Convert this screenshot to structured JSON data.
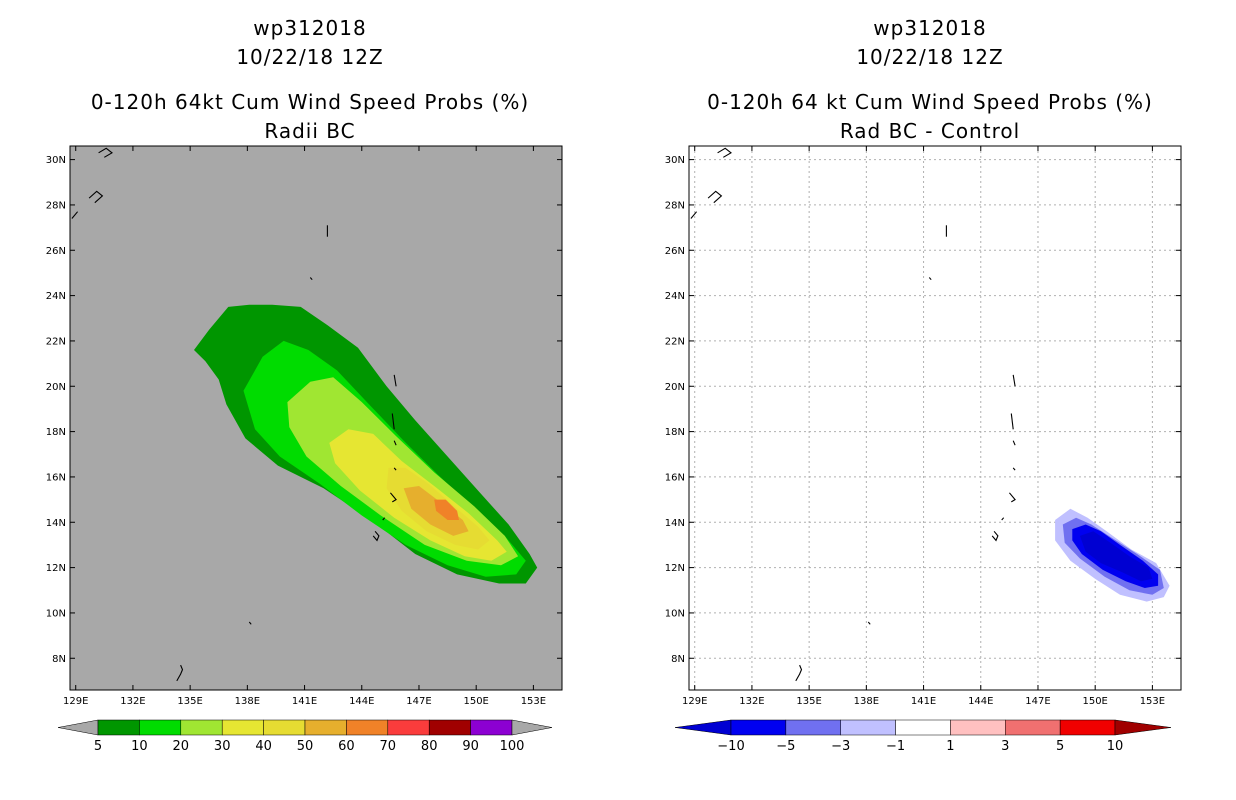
{
  "charts": [
    {
      "title_line1": "wp312018",
      "title_line2": "10/22/18 12Z",
      "title_line3": "0-120h 64kt Cum Wind Speed Probs (%)",
      "title_line4": "Radii BC"
    },
    {
      "title_line1": "wp312018",
      "title_line2": "10/22/18 12Z",
      "title_line3": "0-120h 64 kt Cum Wind Speed Probs (%)",
      "title_line4": "Rad BC - Control"
    }
  ],
  "chart_data": [
    {
      "type": "heatmap",
      "title": "0-120h 64kt Cum Wind Speed Probs (%)",
      "subtitle": "Radii BC",
      "x_ticks": [
        "129E",
        "132E",
        "135E",
        "138E",
        "141E",
        "144E",
        "147E",
        "150E",
        "153E"
      ],
      "y_ticks": [
        "8N",
        "10N",
        "12N",
        "14N",
        "16N",
        "18N",
        "20N",
        "22N",
        "24N",
        "26N",
        "28N",
        "30N"
      ],
      "xlim": [
        128.7,
        154.5
      ],
      "ylim": [
        6.6,
        30.6
      ],
      "grid": false,
      "background_color": "#a8a8a8",
      "colorbar": {
        "levels": [
          "5",
          "10",
          "20",
          "30",
          "40",
          "50",
          "60",
          "70",
          "80",
          "90",
          "100"
        ],
        "colors": [
          "#009600",
          "#00dc00",
          "#a0e632",
          "#e6e632",
          "#e6dc32",
          "#e6af2d",
          "#f08228",
          "#fa3c3c",
          "#a00000",
          "#8c00d2"
        ]
      },
      "contours": [
        {
          "level": 5,
          "color": "#009600",
          "points": [
            [
              135.2,
              21.6
            ],
            [
              136,
              22.5
            ],
            [
              137,
              23.5
            ],
            [
              138.1,
              23.6
            ],
            [
              139.3,
              23.6
            ],
            [
              140.8,
              23.5
            ],
            [
              142.2,
              22.7
            ],
            [
              143.8,
              21.7
            ],
            [
              145.3,
              20
            ],
            [
              146.8,
              18.5
            ],
            [
              148.5,
              16.9
            ],
            [
              150.2,
              15.3
            ],
            [
              151.7,
              13.9
            ],
            [
              152.8,
              12.6
            ],
            [
              153.2,
              12
            ],
            [
              152.6,
              11.3
            ],
            [
              151.2,
              11.3
            ],
            [
              149,
              11.7
            ],
            [
              146.8,
              12.6
            ],
            [
              144.5,
              14.1
            ],
            [
              142,
              15.5
            ],
            [
              139.6,
              16.5
            ],
            [
              137.9,
              17.7
            ],
            [
              136.9,
              19.2
            ],
            [
              136.5,
              20.3
            ],
            [
              135.8,
              21.1
            ]
          ]
        },
        {
          "level": 10,
          "color": "#00dc00",
          "points": [
            [
              137.8,
              19.8
            ],
            [
              138.8,
              21.3
            ],
            [
              139.9,
              22
            ],
            [
              141.2,
              21.6
            ],
            [
              142.7,
              20.7
            ],
            [
              144.5,
              19.1
            ],
            [
              146.2,
              17.6
            ],
            [
              148,
              16.1
            ],
            [
              149.9,
              14.6
            ],
            [
              151.5,
              13.4
            ],
            [
              152.6,
              12.3
            ],
            [
              152.1,
              11.7
            ],
            [
              150.5,
              11.6
            ],
            [
              148.5,
              12.1
            ],
            [
              146.3,
              13
            ],
            [
              144,
              14.3
            ],
            [
              141.8,
              15.7
            ],
            [
              139.7,
              16.9
            ],
            [
              138.4,
              18.1
            ]
          ]
        },
        {
          "level": 20,
          "color": "#a0e632",
          "points": [
            [
              140.1,
              19.3
            ],
            [
              141.3,
              20.2
            ],
            [
              142.5,
              20.4
            ],
            [
              144,
              19.3
            ],
            [
              145.8,
              17.8
            ],
            [
              147.8,
              16.2
            ],
            [
              149.9,
              14.7
            ],
            [
              151.5,
              13.4
            ],
            [
              152.2,
              12.5
            ],
            [
              151.3,
              12.1
            ],
            [
              149.5,
              12.3
            ],
            [
              147.3,
              13
            ],
            [
              145,
              14.3
            ],
            [
              142.9,
              15.6
            ],
            [
              141.1,
              16.9
            ],
            [
              140.2,
              18.2
            ]
          ]
        },
        {
          "level": 30,
          "color": "#e6e632",
          "points": [
            [
              142.3,
              17.5
            ],
            [
              143.3,
              18.1
            ],
            [
              144.6,
              17.9
            ],
            [
              146.1,
              16.7
            ],
            [
              147.8,
              15.6
            ],
            [
              149.6,
              14.4
            ],
            [
              151.1,
              13.2
            ],
            [
              151.6,
              12.7
            ],
            [
              150.8,
              12.3
            ],
            [
              149.4,
              12.5
            ],
            [
              147.6,
              13.2
            ],
            [
              145.7,
              14.2
            ],
            [
              143.9,
              15.4
            ],
            [
              142.6,
              16.6
            ]
          ]
        },
        {
          "level": 40,
          "color": "#e6dc32",
          "points": [
            [
              145.4,
              16.4
            ],
            [
              146.3,
              16.4
            ],
            [
              147.5,
              15.7
            ],
            [
              149,
              14.6
            ],
            [
              150.1,
              13.8
            ],
            [
              150.7,
              13.2
            ],
            [
              150.1,
              12.8
            ],
            [
              148.9,
              13
            ],
            [
              147.4,
              13.6
            ],
            [
              146.1,
              14.5
            ],
            [
              145.3,
              15.5
            ]
          ]
        },
        {
          "level": 50,
          "color": "#e6af2d",
          "points": [
            [
              146.2,
              15.5
            ],
            [
              147,
              15.6
            ],
            [
              148.1,
              14.9
            ],
            [
              149.3,
              14.1
            ],
            [
              149.6,
              13.6
            ],
            [
              148.8,
              13.4
            ],
            [
              147.6,
              13.9
            ],
            [
              146.6,
              14.6
            ]
          ]
        },
        {
          "level": 60,
          "color": "#f08228",
          "points": [
            [
              147.8,
              15
            ],
            [
              148.4,
              15
            ],
            [
              149,
              14.5
            ],
            [
              149.1,
              14.1
            ],
            [
              148.5,
              14.1
            ],
            [
              147.9,
              14.5
            ]
          ]
        }
      ]
    },
    {
      "type": "heatmap",
      "title": "0-120h 64 kt Cum Wind Speed Probs (%)",
      "subtitle": "Rad BC - Control",
      "x_ticks": [
        "129E",
        "132E",
        "135E",
        "138E",
        "141E",
        "144E",
        "147E",
        "150E",
        "153E"
      ],
      "y_ticks": [
        "8N",
        "10N",
        "12N",
        "14N",
        "16N",
        "18N",
        "20N",
        "22N",
        "24N",
        "26N",
        "28N",
        "30N"
      ],
      "xlim": [
        128.7,
        154.5
      ],
      "ylim": [
        6.6,
        30.6
      ],
      "grid": true,
      "background_color": "#ffffff",
      "colorbar": {
        "levels": [
          "-10",
          "-5",
          "-3",
          "-1",
          "1",
          "3",
          "5",
          "10"
        ],
        "colors": [
          "#0000d2",
          "#0000f0",
          "#7070f0",
          "#c0c0ff",
          "#ffffff",
          "#ffc0c0",
          "#f07070",
          "#f00000",
          "#a00000"
        ]
      },
      "contours": [
        {
          "level": -1,
          "color": "#c0c0ff",
          "points": [
            [
              147.9,
              14.1
            ],
            [
              148.7,
              14.6
            ],
            [
              149.6,
              14.2
            ],
            [
              150.6,
              13.6
            ],
            [
              151.9,
              12.8
            ],
            [
              153.2,
              12.2
            ],
            [
              153.9,
              11.2
            ],
            [
              153.6,
              10.7
            ],
            [
              152.7,
              10.5
            ],
            [
              151.3,
              10.8
            ],
            [
              150,
              11.5
            ],
            [
              148.7,
              12.3
            ],
            [
              147.9,
              13.2
            ]
          ]
        },
        {
          "level": -3,
          "color": "#7070f0",
          "points": [
            [
              148.3,
              13.9
            ],
            [
              149,
              14.2
            ],
            [
              149.8,
              13.9
            ],
            [
              150.9,
              13.3
            ],
            [
              152.2,
              12.6
            ],
            [
              153.4,
              11.9
            ],
            [
              153.6,
              11.1
            ],
            [
              153,
              10.8
            ],
            [
              151.8,
              11
            ],
            [
              150.5,
              11.6
            ],
            [
              149.2,
              12.4
            ],
            [
              148.4,
              13.1
            ]
          ]
        },
        {
          "level": -5,
          "color": "#0000f0",
          "points": [
            [
              148.8,
              13.7
            ],
            [
              149.5,
              13.9
            ],
            [
              150.3,
              13.6
            ],
            [
              151.3,
              13
            ],
            [
              152.5,
              12.3
            ],
            [
              153.3,
              11.7
            ],
            [
              153.3,
              11.2
            ],
            [
              152.6,
              11.1
            ],
            [
              151.6,
              11.4
            ],
            [
              150.4,
              11.9
            ],
            [
              149.3,
              12.6
            ],
            [
              148.8,
              13.2
            ]
          ]
        },
        {
          "level": -10,
          "color": "#0000d2",
          "points": [
            [
              149.2,
              13.4
            ],
            [
              149.9,
              13.6
            ],
            [
              150.8,
              13.1
            ],
            [
              151.8,
              12.5
            ],
            [
              152.8,
              12
            ],
            [
              153,
              11.5
            ],
            [
              152.4,
              11.4
            ],
            [
              151.4,
              11.8
            ],
            [
              150.3,
              12.2
            ],
            [
              149.5,
              12.7
            ]
          ]
        }
      ]
    }
  ]
}
